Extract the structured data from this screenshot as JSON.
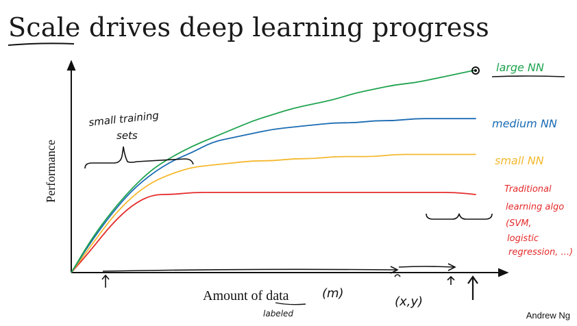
{
  "slide": {
    "title_word": "Scale",
    "title_rest": " drives deep learning progress",
    "credit": "Andrew Ng"
  },
  "chart_data": {
    "type": "line",
    "title": "Scale drives deep learning progress",
    "xlabel": "Amount of data",
    "ylabel": "Performance",
    "xlim": [
      0,
      100
    ],
    "ylim": [
      0,
      100
    ],
    "grid": false,
    "x": [
      0,
      5,
      10,
      15,
      20,
      25,
      30,
      35,
      40,
      45,
      50,
      55,
      60,
      65,
      70,
      75,
      80,
      85,
      90,
      95,
      100
    ],
    "series": [
      {
        "name": "large NN",
        "color": "#1fa34f",
        "values": [
          0,
          16,
          29,
          40,
          49,
          55,
          60,
          64,
          68,
          72,
          75,
          78,
          80,
          82,
          85,
          87,
          89,
          90,
          92,
          94,
          96
        ]
      },
      {
        "name": "medium NN",
        "color": "#1a6bb3",
        "values": [
          0,
          15,
          28,
          39,
          47,
          53,
          57,
          62,
          64,
          66,
          68,
          69,
          70,
          71,
          71,
          72,
          72,
          73,
          73,
          73,
          73
        ]
      },
      {
        "name": "small NN",
        "color": "#f5b82e",
        "values": [
          0,
          13,
          26,
          36,
          43,
          47,
          50,
          51,
          52,
          53,
          53,
          54,
          54,
          55,
          55,
          55,
          56,
          56,
          56,
          56,
          56
        ]
      },
      {
        "name": "Traditional learning algo (SVM, logistic regression, ...)",
        "color": "#e52a2a",
        "values": [
          0,
          11,
          23,
          32,
          37,
          37,
          38,
          38,
          38,
          38,
          38,
          38,
          38,
          38,
          38,
          38,
          38,
          38,
          38,
          38,
          37
        ]
      }
    ],
    "labels": {
      "large": "large NN",
      "medium": "medium NN",
      "small": "small NN",
      "trad_1": "Traditional",
      "trad_2": "learning algo",
      "trad_3": "(SVM,",
      "trad_4": "logistic",
      "trad_5": "regression, ...)"
    },
    "annotations": {
      "small_sets_1": "small training",
      "small_sets_2": "sets",
      "m": "(m)",
      "xy": "(x,y)",
      "labeled": "labeled"
    }
  }
}
